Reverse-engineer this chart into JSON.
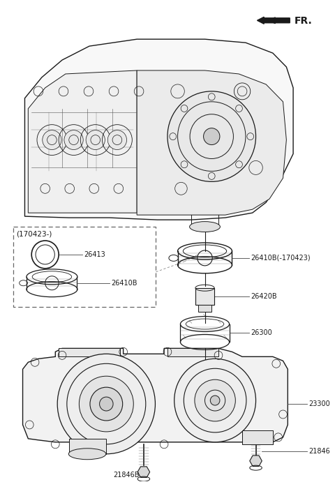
{
  "bg_color": "#ffffff",
  "line_color": "#1a1a1a",
  "gray_color": "#888888",
  "labels": {
    "fr": "FR.",
    "p26413": "26413",
    "p26410B_in": "26410B",
    "p26410B_out": "26410B(-170423)",
    "p26420B": "26420B",
    "p26300": "26300",
    "p23300": "23300",
    "p21846": "21846",
    "p21846B": "21846B",
    "date_label": "(170423-)"
  },
  "fontsize": 7.0,
  "title_fontsize": 9.0
}
